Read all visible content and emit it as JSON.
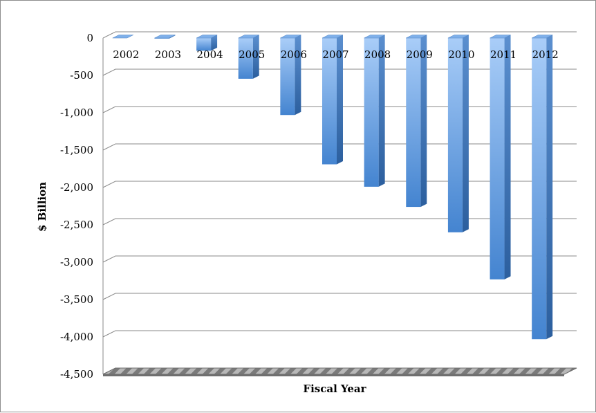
{
  "chart_data": {
    "type": "bar",
    "title": "",
    "xlabel": "Fiscal Year",
    "ylabel": "$ Billion",
    "categories": [
      "2002",
      "2003",
      "2004",
      "2005",
      "2006",
      "2007",
      "2008",
      "2009",
      "2010",
      "2011",
      "2012"
    ],
    "series": [
      {
        "values": [
          0,
          -8,
          -170,
          -545,
          -1030,
          -1690,
          -1990,
          -2260,
          -2600,
          -3230,
          -4030
        ]
      }
    ],
    "ylim": [
      -4500,
      0
    ],
    "yticks": [
      0,
      -500,
      -1000,
      -1500,
      -2000,
      -2500,
      -3000,
      -3500,
      -4000,
      -4500
    ],
    "ytick_labels": [
      "0",
      "-500",
      "-1,000",
      "-1,500",
      "-2,000",
      "-2,500",
      "-3,000",
      "-3,500",
      "-4,000",
      "-4,500"
    ],
    "grid": true,
    "legend": "none",
    "style": "3d-column",
    "bar_color": "#4f8fd8"
  }
}
